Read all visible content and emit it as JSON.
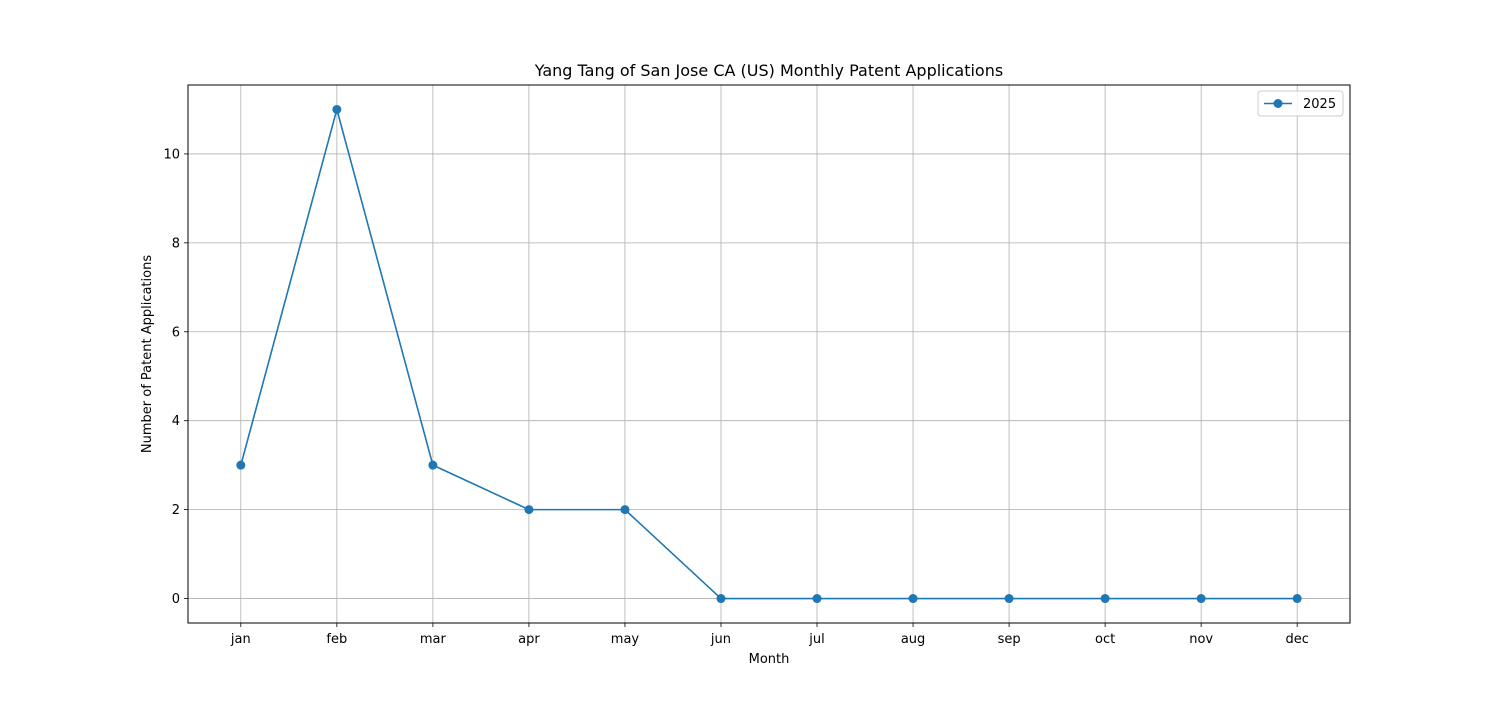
{
  "chart_data": {
    "type": "line",
    "title": "Yang Tang of San Jose CA (US) Monthly Patent Applications",
    "xlabel": "Month",
    "ylabel": "Number of Patent Applications",
    "categories": [
      "jan",
      "feb",
      "mar",
      "apr",
      "may",
      "jun",
      "jul",
      "aug",
      "sep",
      "oct",
      "nov",
      "dec"
    ],
    "series": [
      {
        "name": "2025",
        "values": [
          3,
          11,
          3,
          2,
          2,
          0,
          0,
          0,
          0,
          0,
          0,
          0
        ],
        "color": "#1f77b4",
        "marker": "circle"
      }
    ],
    "ylim": [
      -0.55,
      11.55
    ],
    "yticks": [
      0,
      2,
      4,
      6,
      8,
      10
    ],
    "grid": true,
    "legend_position": "top-right"
  }
}
